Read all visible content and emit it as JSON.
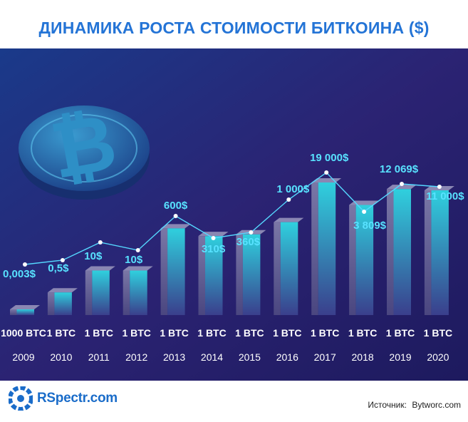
{
  "title": "ДИНАМИКА РОСТА СТОИМОСТИ БИТКОИНА ($)",
  "chart_data": {
    "type": "line",
    "categories": [
      "2009",
      "2010",
      "2011",
      "2012",
      "2013",
      "2014",
      "2015",
      "2016",
      "2017",
      "2018",
      "2019",
      "2020"
    ],
    "price_labels": [
      "0,003$",
      "0,5$",
      "10$",
      "10$",
      "600$",
      "310$",
      "360$",
      "1 000$",
      "19 000$",
      "3 809$",
      "12 069$",
      "11 000$"
    ],
    "values": [
      0.003,
      0.5,
      10,
      10,
      600,
      310,
      360,
      1000,
      19000,
      3809,
      12069,
      11000
    ],
    "bar_labels": [
      "1000 BTC",
      "1 BTC",
      "1 BTC",
      "1 BTC",
      "1 BTC",
      "1 BTC",
      "1 BTC",
      "1 BTC",
      "1 BTC",
      "1 BTC",
      "1 BTC",
      "1 BTC"
    ],
    "bar_values": [
      0.003,
      0.5,
      10,
      10,
      600,
      310,
      360,
      1000,
      19000,
      3809,
      12069,
      11000
    ],
    "colors": {
      "background": "#231d6b",
      "line": "#55d8ff",
      "label": "#58e2ff",
      "bar_front": "#2bb7c9",
      "bar_side": "#5d5a8e",
      "bar_top": "#8a87b3"
    }
  },
  "footer": {
    "logo_text": "RSpectr.com",
    "source_label": "Источник:",
    "source_value": "Bytworc.com"
  }
}
